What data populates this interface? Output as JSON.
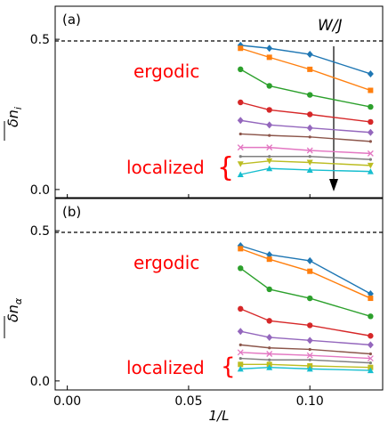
{
  "chart_data": [
    {
      "type": "line",
      "panel_label": "(a)",
      "ylabel": "δn_i",
      "xlim": [
        -0.005,
        0.13
      ],
      "ylim": [
        -0.03,
        0.61
      ],
      "yticks": [
        0.0,
        0.5
      ],
      "ytick_labels": [
        "0.0",
        "0.5"
      ],
      "reference_line": {
        "y": 0.5,
        "style": "dashed"
      },
      "arrow_label": "W/J",
      "annotations": [
        "ergodic",
        "localized"
      ],
      "bracket": "{",
      "x": [
        0.0714,
        0.0833,
        0.1,
        0.125
      ],
      "series": [
        {
          "color": "#1f77b4",
          "marker": "diamond",
          "values": [
            0.48,
            0.47,
            0.45,
            0.385
          ]
        },
        {
          "color": "#ff7f0e",
          "marker": "square",
          "values": [
            0.47,
            0.44,
            0.4,
            0.33
          ]
        },
        {
          "color": "#2ca02c",
          "marker": "circle",
          "values": [
            0.4,
            0.345,
            0.315,
            0.275
          ]
        },
        {
          "color": "#d62728",
          "marker": "circle",
          "values": [
            0.29,
            0.265,
            0.25,
            0.225
          ]
        },
        {
          "color": "#9467bd",
          "marker": "diamond",
          "values": [
            0.23,
            0.215,
            0.205,
            0.19
          ]
        },
        {
          "color": "#8c564b",
          "marker": "point",
          "values": [
            0.185,
            0.18,
            0.175,
            0.16
          ]
        },
        {
          "color": "#e377c2",
          "marker": "x",
          "values": [
            0.14,
            0.14,
            0.13,
            0.12
          ]
        },
        {
          "color": "#7f7f7f",
          "marker": "point",
          "values": [
            0.11,
            0.11,
            0.11,
            0.1
          ]
        },
        {
          "color": "#bcbd22",
          "marker": "triangle-down",
          "values": [
            0.085,
            0.095,
            0.09,
            0.08
          ]
        },
        {
          "color": "#17becf",
          "marker": "triangle-up",
          "values": [
            0.05,
            0.07,
            0.065,
            0.06
          ]
        }
      ]
    },
    {
      "type": "line",
      "panel_label": "(b)",
      "ylabel": "δn_α",
      "xlabel": "1/L",
      "xlim": [
        -0.005,
        0.13
      ],
      "ylim": [
        -0.03,
        0.61
      ],
      "xticks": [
        0.0,
        0.05,
        0.1
      ],
      "xtick_labels": [
        "0.00",
        "0.05",
        "0.10"
      ],
      "yticks": [
        0.0,
        0.5
      ],
      "ytick_labels": [
        "0.0",
        "0.5"
      ],
      "reference_line": {
        "y": 0.5,
        "style": "dashed"
      },
      "annotations": [
        "ergodic",
        "localized"
      ],
      "bracket": "{",
      "x": [
        0.0714,
        0.0833,
        0.1,
        0.125
      ],
      "series": [
        {
          "color": "#1f77b4",
          "marker": "diamond",
          "values": [
            0.45,
            0.42,
            0.4,
            0.29
          ]
        },
        {
          "color": "#ff7f0e",
          "marker": "square",
          "values": [
            0.44,
            0.405,
            0.365,
            0.275
          ]
        },
        {
          "color": "#2ca02c",
          "marker": "circle",
          "values": [
            0.375,
            0.305,
            0.275,
            0.215
          ]
        },
        {
          "color": "#d62728",
          "marker": "circle",
          "values": [
            0.24,
            0.2,
            0.185,
            0.15
          ]
        },
        {
          "color": "#9467bd",
          "marker": "diamond",
          "values": [
            0.165,
            0.145,
            0.135,
            0.12
          ]
        },
        {
          "color": "#8c564b",
          "marker": "point",
          "values": [
            0.12,
            0.11,
            0.105,
            0.09
          ]
        },
        {
          "color": "#e377c2",
          "marker": "x",
          "values": [
            0.095,
            0.09,
            0.085,
            0.075
          ]
        },
        {
          "color": "#7f7f7f",
          "marker": "point",
          "values": [
            0.075,
            0.07,
            0.07,
            0.06
          ]
        },
        {
          "color": "#bcbd22",
          "marker": "square",
          "values": [
            0.055,
            0.055,
            0.05,
            0.045
          ]
        },
        {
          "color": "#17becf",
          "marker": "triangle-up",
          "values": [
            0.04,
            0.045,
            0.04,
            0.035
          ]
        }
      ]
    }
  ]
}
